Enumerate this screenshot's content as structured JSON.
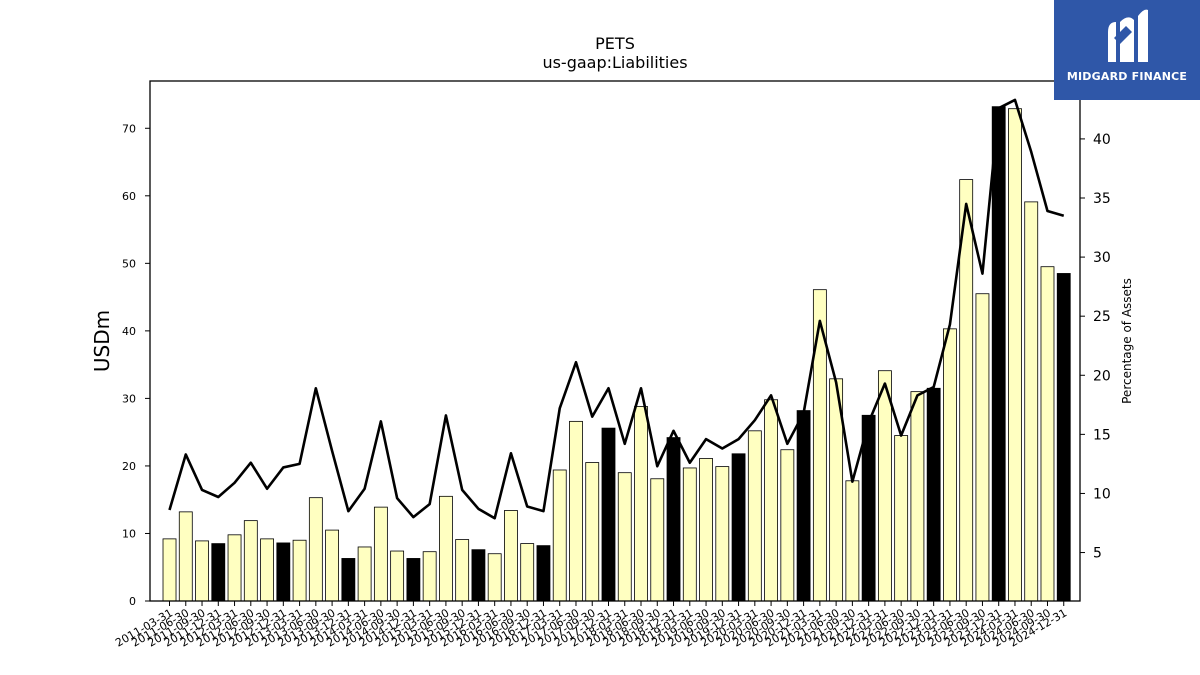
{
  "chart_data": {
    "type": "bar",
    "title": "PETS",
    "subtitle": "us-gaap:Liabilities",
    "ylabel": "USDm",
    "y2label": "Percentage of Assets",
    "ylim": [
      0,
      77
    ],
    "y2lim": [
      0.9,
      44.9
    ],
    "yticks": [
      0,
      10,
      20,
      30,
      40,
      50,
      60,
      70
    ],
    "y2ticks": [
      5,
      10,
      15,
      20,
      25,
      30,
      35,
      40
    ],
    "categories": [
      "2011-03-31",
      "2011-06-30",
      "2011-09-30",
      "2011-12-31",
      "2012-03-31",
      "2012-06-30",
      "2012-09-30",
      "2012-12-31",
      "2013-03-31",
      "2013-06-30",
      "2013-09-30",
      "2013-12-31",
      "2014-03-31",
      "2014-06-30",
      "2014-09-30",
      "2014-12-31",
      "2015-03-31",
      "2015-06-30",
      "2015-09-30",
      "2015-12-31",
      "2016-03-31",
      "2016-06-30",
      "2016-09-30",
      "2016-12-31",
      "2017-03-31",
      "2017-06-30",
      "2017-09-30",
      "2017-12-31",
      "2018-03-31",
      "2018-06-30",
      "2018-09-30",
      "2018-12-31",
      "2019-03-31",
      "2019-06-30",
      "2019-09-30",
      "2019-12-31",
      "2020-03-31",
      "2020-06-30",
      "2020-09-30",
      "2020-12-31",
      "2021-03-31",
      "2021-06-30",
      "2021-09-30",
      "2021-12-31",
      "2022-03-31",
      "2022-06-30",
      "2022-09-30",
      "2022-12-31",
      "2023-03-31",
      "2023-06-30",
      "2023-09-30",
      "2023-12-31",
      "2024-03-31",
      "2024-06-30",
      "2024-09-30",
      "2024-12-31"
    ],
    "series": [
      {
        "name": "Liabilities",
        "kind": "bar",
        "axis": "left",
        "values": [
          9.2,
          13.2,
          8.9,
          8.5,
          9.8,
          11.9,
          9.2,
          8.6,
          9.0,
          15.3,
          10.5,
          6.3,
          8.0,
          13.9,
          7.4,
          6.3,
          7.3,
          15.5,
          9.1,
          7.6,
          7.0,
          13.4,
          8.5,
          8.2,
          19.4,
          26.6,
          20.5,
          25.6,
          19.0,
          28.8,
          18.1,
          24.2,
          19.7,
          21.1,
          19.9,
          21.8,
          25.2,
          29.8,
          22.4,
          28.2,
          46.1,
          32.9,
          17.8,
          27.5,
          34.1,
          24.5,
          31.0,
          31.5,
          40.3,
          62.4,
          45.5,
          73.2,
          72.9,
          59.1,
          49.5,
          48.5
        ],
        "highlight": [
          false,
          false,
          false,
          true,
          false,
          false,
          false,
          true,
          false,
          false,
          false,
          true,
          false,
          false,
          false,
          true,
          false,
          false,
          false,
          true,
          false,
          false,
          false,
          true,
          false,
          false,
          false,
          true,
          false,
          false,
          false,
          true,
          false,
          false,
          false,
          true,
          false,
          false,
          false,
          true,
          false,
          false,
          false,
          true,
          false,
          false,
          false,
          true,
          false,
          false,
          false,
          true,
          false,
          false,
          false,
          true
        ]
      },
      {
        "name": "Percentage of Assets",
        "kind": "line",
        "axis": "right",
        "values": [
          8.6,
          13.3,
          10.3,
          9.7,
          10.9,
          12.6,
          10.4,
          12.2,
          12.5,
          18.9,
          13.6,
          8.5,
          10.4,
          16.1,
          9.6,
          8.0,
          9.1,
          16.6,
          10.3,
          8.7,
          7.9,
          13.4,
          8.9,
          8.5,
          17.2,
          21.1,
          16.5,
          18.9,
          14.2,
          18.9,
          12.3,
          15.3,
          12.6,
          14.6,
          13.8,
          14.6,
          16.2,
          18.3,
          14.2,
          16.8,
          24.6,
          19.4,
          11.0,
          16.0,
          19.3,
          14.9,
          18.3,
          19.0,
          24.3,
          34.5,
          28.6,
          42.6,
          43.3,
          38.9,
          33.9,
          33.5
        ]
      }
    ],
    "colors": {
      "bar": "#ffffc1",
      "bar_highlight": "#000000",
      "line": "#000000"
    }
  },
  "logo": {
    "name": "MIDGARD FINANCE",
    "bg": "#2f57a8"
  }
}
